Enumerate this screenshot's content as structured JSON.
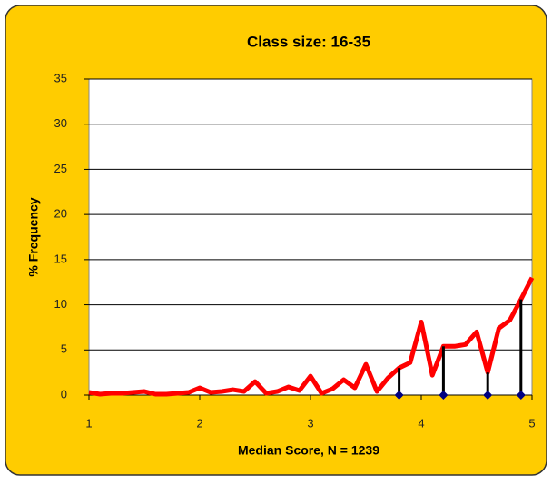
{
  "chart_data": {
    "type": "line",
    "title": "Class size: 16-35",
    "xlabel": "Median Score, N = 1239",
    "ylabel": "% Frequency",
    "x": [
      1.0,
      1.1,
      1.2,
      1.3,
      1.4,
      1.5,
      1.6,
      1.7,
      1.8,
      1.9,
      2.0,
      2.1,
      2.2,
      2.3,
      2.4,
      2.5,
      2.6,
      2.7,
      2.8,
      2.9,
      3.0,
      3.1,
      3.2,
      3.3,
      3.4,
      3.5,
      3.6,
      3.7,
      3.8,
      3.9,
      4.0,
      4.1,
      4.2,
      4.3,
      4.4,
      4.5,
      4.6,
      4.7,
      4.8,
      4.9,
      5.0
    ],
    "series": [
      {
        "color": "#ff0000",
        "values": [
          0.3,
          0.1,
          0.2,
          0.2,
          0.3,
          0.4,
          0.1,
          0.1,
          0.2,
          0.3,
          0.8,
          0.3,
          0.4,
          0.6,
          0.4,
          1.5,
          0.2,
          0.4,
          0.9,
          0.5,
          2.1,
          0.2,
          0.7,
          1.7,
          0.8,
          3.4,
          0.4,
          1.9,
          3.0,
          3.6,
          8.1,
          2.2,
          5.4,
          5.4,
          5.6,
          7.0,
          2.5,
          7.4,
          8.3,
          10.6,
          13.0
        ]
      }
    ],
    "stems": {
      "color": "#000000",
      "marker_color": "#000080",
      "x": [
        3.8,
        4.2,
        4.6,
        4.9
      ],
      "values": [
        3.0,
        5.4,
        2.5,
        10.6
      ]
    },
    "xlim": [
      1,
      5
    ],
    "xticks": [
      1,
      2,
      3,
      4,
      5
    ],
    "ylim": [
      0,
      35
    ],
    "yticks": [
      0,
      5,
      10,
      15,
      20,
      25,
      30,
      35
    ],
    "grid": true
  }
}
